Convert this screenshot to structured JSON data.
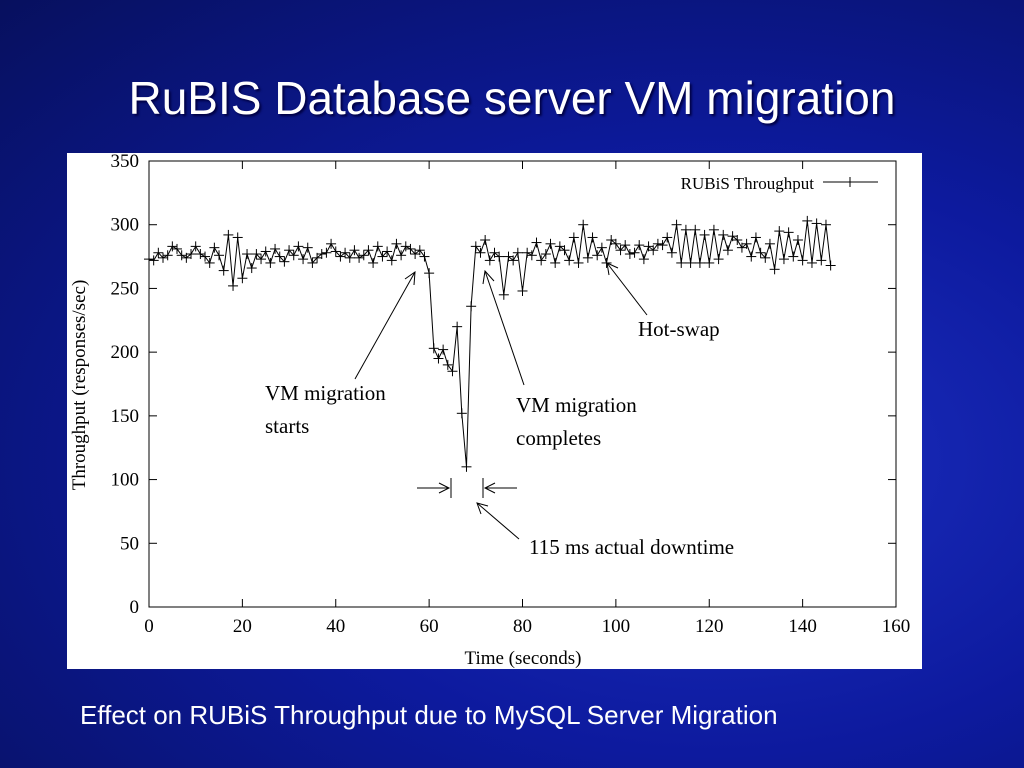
{
  "slide": {
    "title": "RuBIS Database server VM migration",
    "caption": "Effect on RUBiS Throughput due to MySQL Server Migration"
  },
  "colors": {
    "background": "#0d1a9e",
    "line": "#000000",
    "panel": "#ffffff"
  },
  "chart_data": {
    "type": "line",
    "title": "",
    "xlabel": "Time (seconds)",
    "ylabel": "Throughput (responses/sec)",
    "xlim": [
      0,
      160
    ],
    "ylim": [
      0,
      350
    ],
    "xticks": [
      "0",
      "20",
      "40",
      "60",
      "80",
      "100",
      "120",
      "140",
      "160"
    ],
    "yticks": [
      "0",
      "50",
      "100",
      "150",
      "200",
      "250",
      "300",
      "350"
    ],
    "legend_position": "top-right",
    "series": [
      {
        "name": "RUBiS Throughput",
        "marker": "plus",
        "x": [
          0,
          1,
          2,
          3,
          4,
          5,
          6,
          7,
          8,
          9,
          10,
          11,
          12,
          13,
          14,
          15,
          16,
          17,
          18,
          19,
          20,
          21,
          22,
          23,
          24,
          25,
          26,
          27,
          28,
          29,
          30,
          31,
          32,
          33,
          34,
          35,
          36,
          37,
          38,
          39,
          40,
          41,
          42,
          43,
          44,
          45,
          46,
          47,
          48,
          49,
          50,
          51,
          52,
          53,
          54,
          55,
          56,
          57,
          58,
          59,
          60,
          61,
          62,
          63,
          64,
          65,
          66,
          67,
          68,
          69,
          70,
          71,
          72,
          73,
          74,
          75,
          76,
          77,
          78,
          79,
          80,
          81,
          82,
          83,
          84,
          85,
          86,
          87,
          88,
          89,
          90,
          91,
          92,
          93,
          94,
          95,
          96,
          97,
          98,
          99,
          100,
          101,
          102,
          103,
          104,
          105,
          106,
          107,
          108,
          109,
          110,
          111,
          112,
          113,
          114,
          115,
          116,
          117,
          118,
          119,
          120,
          121,
          122,
          123,
          124,
          125,
          126,
          127,
          128,
          129,
          130,
          131,
          132,
          133,
          134,
          135,
          136,
          137,
          138,
          139,
          140,
          141,
          142,
          143,
          144,
          145,
          146
        ],
        "y": [
          273,
          272,
          278,
          274,
          276,
          283,
          281,
          276,
          274,
          277,
          283,
          277,
          275,
          270,
          282,
          276,
          264,
          292,
          252,
          290,
          258,
          277,
          266,
          277,
          273,
          279,
          270,
          281,
          275,
          271,
          280,
          276,
          283,
          273,
          282,
          270,
          274,
          277,
          278,
          285,
          279,
          275,
          278,
          274,
          280,
          274,
          276,
          280,
          270,
          283,
          275,
          279,
          272,
          285,
          276,
          283,
          281,
          277,
          280,
          275,
          262,
          203,
          195,
          202,
          190,
          185,
          220,
          152,
          110,
          236,
          283,
          278,
          288,
          272,
          278,
          275,
          245,
          275,
          272,
          278,
          248,
          278,
          276,
          286,
          272,
          277,
          285,
          270,
          283,
          280,
          272,
          290,
          270,
          300,
          274,
          290,
          276,
          282,
          270,
          288,
          285,
          280,
          284,
          277,
          278,
          284,
          273,
          283,
          280,
          285,
          284,
          290,
          278,
          300,
          270,
          296,
          270,
          296,
          270,
          292,
          270,
          296,
          273,
          292,
          280,
          291,
          288,
          282,
          285,
          275,
          290,
          278,
          274,
          285,
          265,
          295,
          273,
          294,
          275,
          288,
          272,
          303,
          270,
          301,
          272,
          300,
          268
        ]
      }
    ],
    "annotations": [
      {
        "id": "migration-starts",
        "text": [
          "VM migration",
          "starts"
        ]
      },
      {
        "id": "migration-completes",
        "text": [
          "VM migration",
          "completes"
        ]
      },
      {
        "id": "hot-swap",
        "text": [
          "Hot-swap"
        ]
      },
      {
        "id": "downtime",
        "text": [
          "115 ms actual downtime"
        ]
      }
    ]
  }
}
